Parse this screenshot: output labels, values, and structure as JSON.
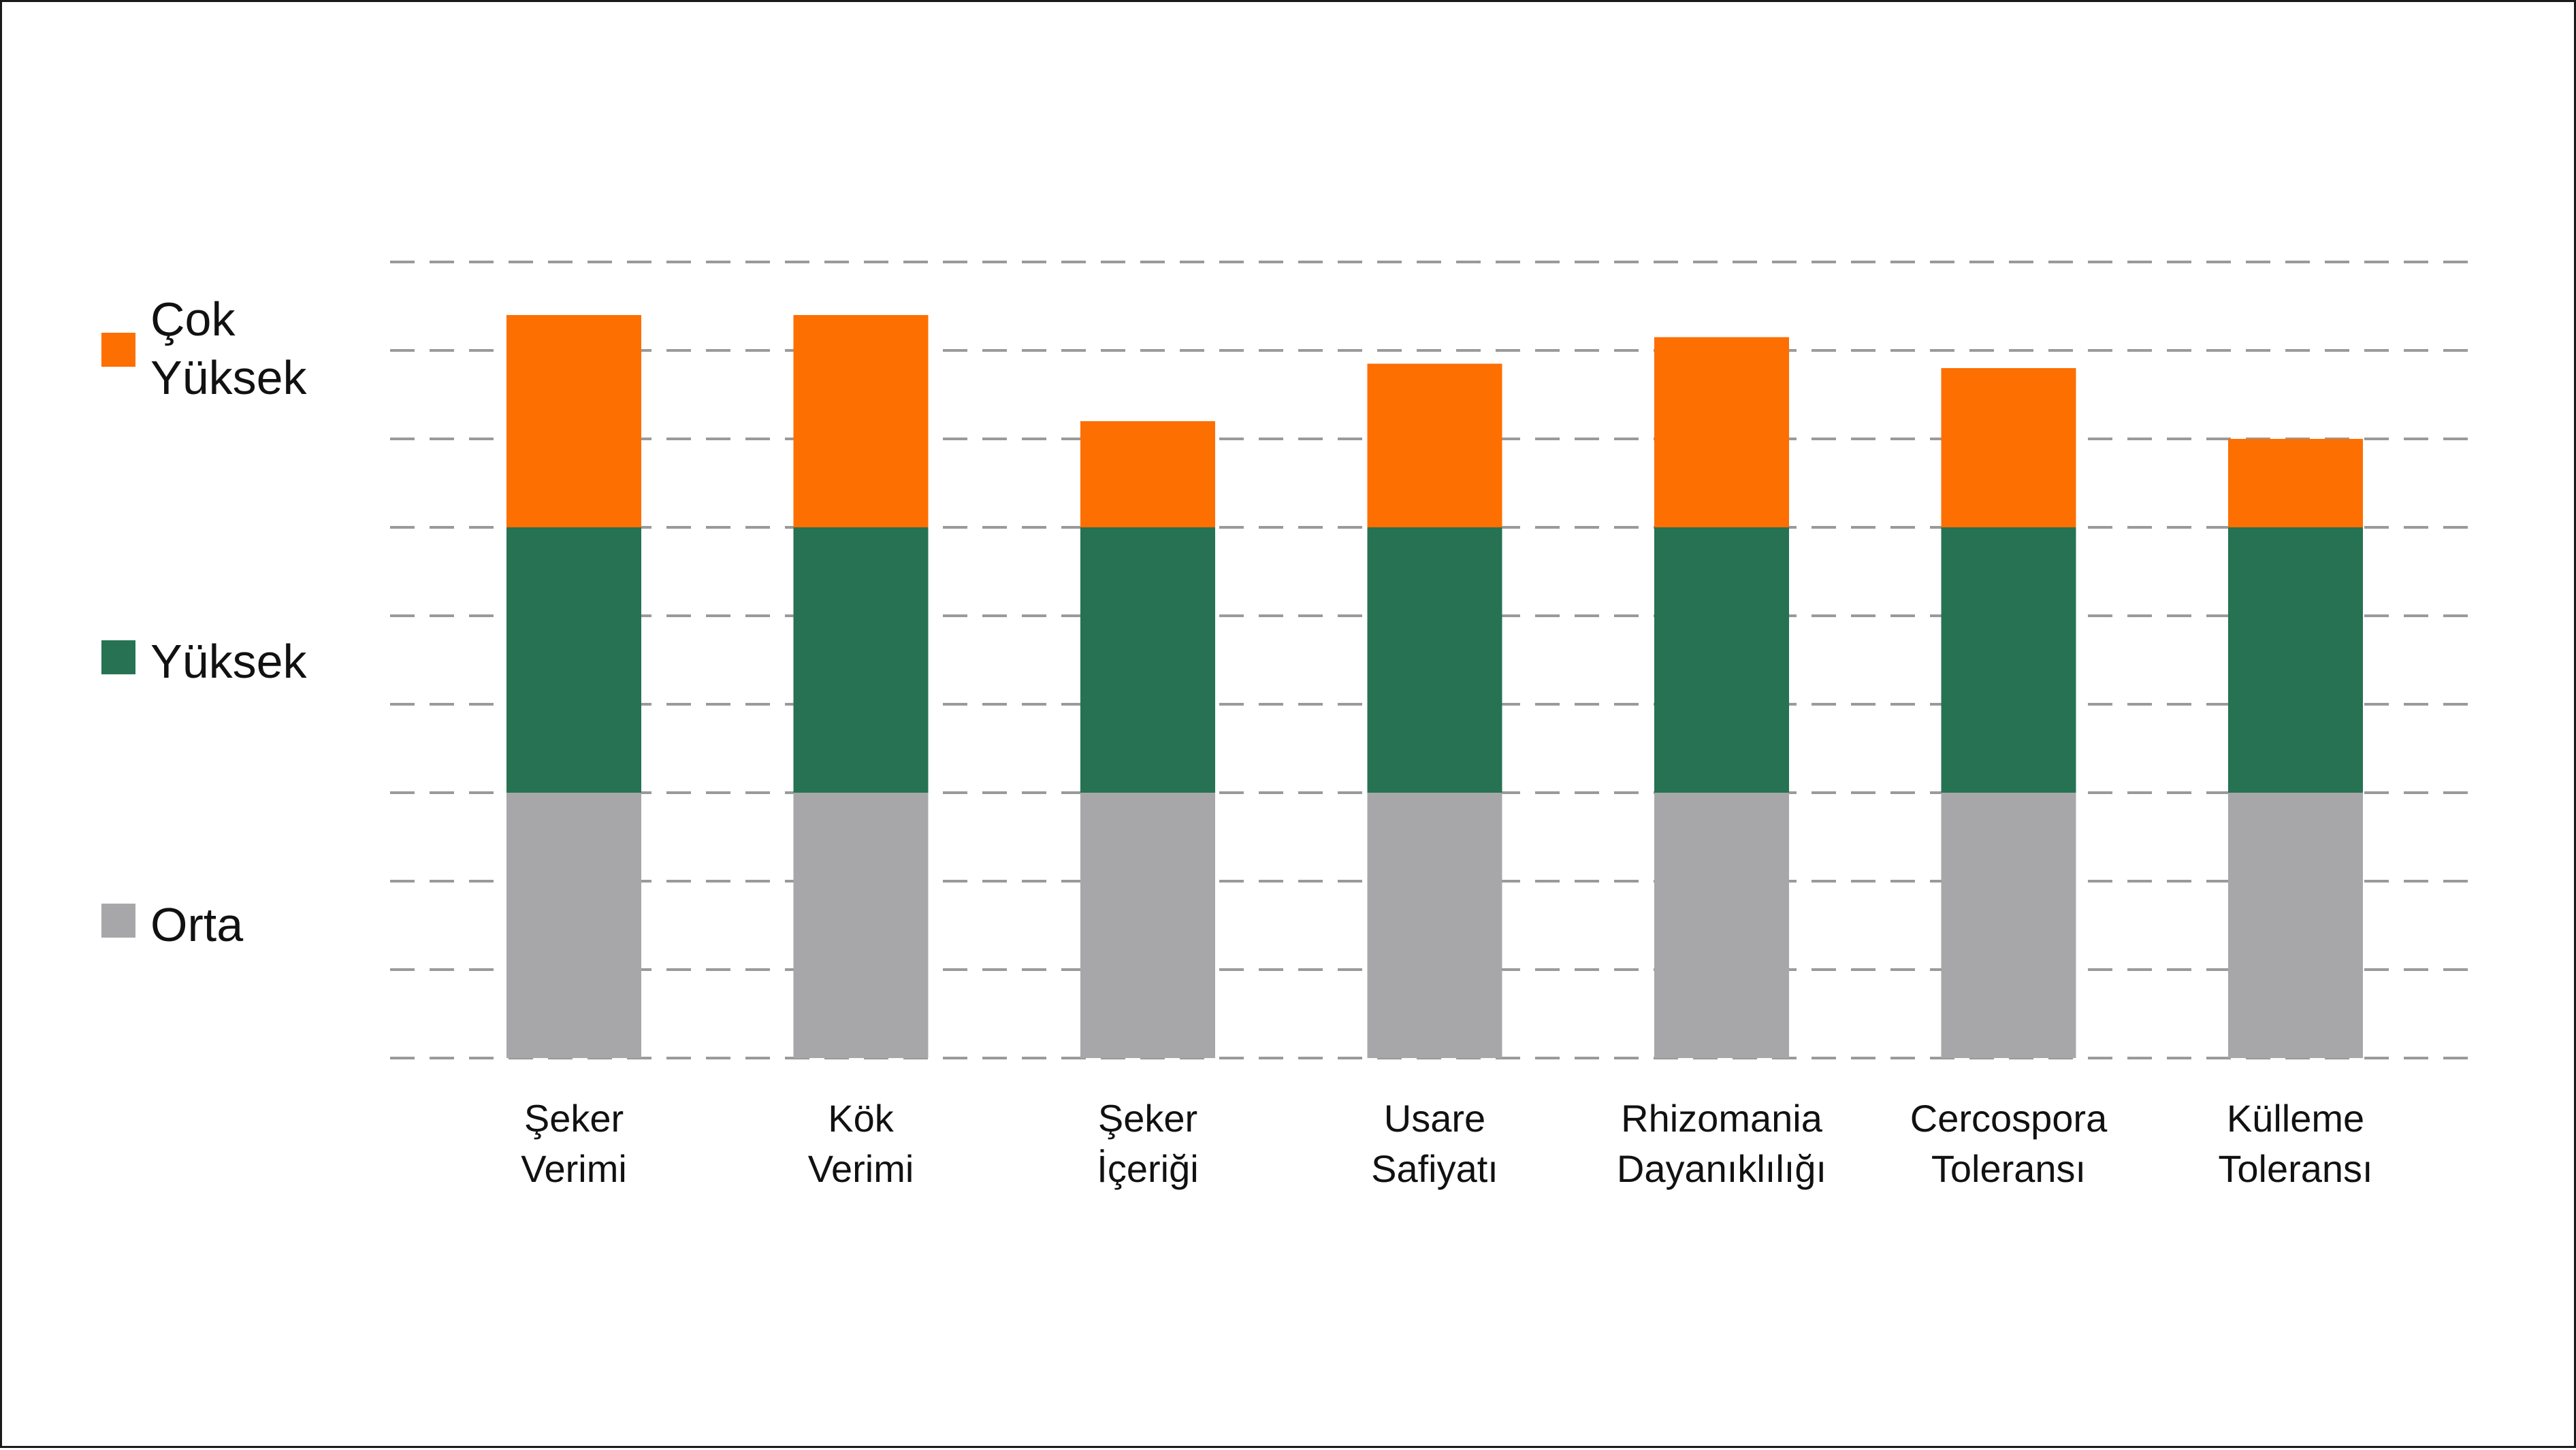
{
  "chart_data": {
    "type": "bar",
    "stacked": true,
    "title": "",
    "xlabel": "",
    "ylabel": "",
    "ylim": [
      0,
      9
    ],
    "grid": true,
    "legend_position": "left",
    "categories": [
      [
        "Şeker",
        "Verimi"
      ],
      [
        "Kök",
        "Verimi"
      ],
      [
        "Şeker",
        "İçeriği"
      ],
      [
        "Usare",
        "Safiyatı"
      ],
      [
        "Rhizomania",
        "Dayanıklılığı"
      ],
      [
        "Cercospora",
        "Toleransı"
      ],
      [
        "Külleme",
        "Toleransı"
      ]
    ],
    "series": [
      {
        "name": "Orta",
        "color": "#a7a7aa",
        "values": [
          3,
          3,
          3,
          3,
          3,
          3,
          3
        ]
      },
      {
        "name": "Yüksek",
        "color": "#267253",
        "values": [
          3,
          3,
          3,
          3,
          3,
          3,
          3
        ]
      },
      {
        "name": "Çok Yüksek",
        "color": "#fd6f01",
        "values": [
          2.4,
          2.4,
          1.2,
          1.85,
          2.15,
          1.8,
          1.0
        ]
      }
    ],
    "legend": [
      {
        "lines": [
          "Çok",
          "Yüksek"
        ],
        "color": "#fd6f01"
      },
      {
        "lines": [
          "Yüksek"
        ],
        "color": "#267253"
      },
      {
        "lines": [
          "Orta"
        ],
        "color": "#a7a7aa"
      }
    ]
  }
}
